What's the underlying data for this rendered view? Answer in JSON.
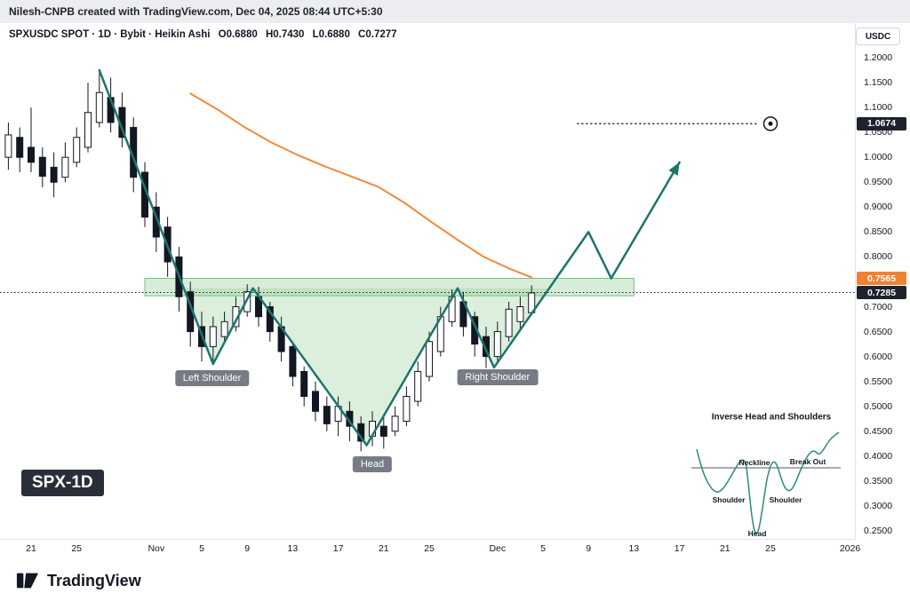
{
  "attribution": "Nilesh-CNPB created with TradingView.com, Dec 04, 2025 08:44 UTC+5:30",
  "header": {
    "symbol_info": "SPXUSDC SPOT · 1D · Bybit · Heikin Ashi",
    "open": "O0.6880",
    "high": "H0.7430",
    "low": "L0.6880",
    "close": "C0.7277"
  },
  "currency_button_label": "USDC",
  "watermark_label": "SPX-1D",
  "logo": {
    "brand": "TradingView"
  },
  "pattern_labels": [
    {
      "name": "left-shoulder-label",
      "label": "Left Shoulder",
      "day": 15.9,
      "price": 0.5565
    },
    {
      "name": "head-label",
      "label": "Head",
      "day": 30.0,
      "price": 0.3836
    },
    {
      "name": "right-shoulder-label",
      "label": "Right Shoulder",
      "day": 41.0,
      "price": 0.558
    }
  ],
  "inset": {
    "title": "Inverse Head and Shoulders",
    "labels": {
      "neckline": "Neckline",
      "breakout": "Break Out",
      "shoulder_left": "Shoulder",
      "shoulder_right": "Shoulder",
      "head": "Head"
    }
  },
  "price_axis": {
    "ticks": [
      "1.2000",
      "1.1500",
      "1.1000",
      "1.0500",
      "1.0000",
      "0.9500",
      "0.9000",
      "0.8500",
      "0.8000",
      "0.7000",
      "0.6500",
      "0.6000",
      "0.5500",
      "0.5000",
      "0.4500",
      "0.4000",
      "0.3500",
      "0.3000",
      "0.2500"
    ],
    "badges": [
      {
        "name": "target-price-badge",
        "value": "1.0674",
        "price": 1.0674,
        "bg": "#1e222d"
      },
      {
        "name": "ma-price-badge",
        "value": "0.7565",
        "price": 0.7565,
        "bg": "#ef8232"
      },
      {
        "name": "last-price-badge",
        "value": "0.7285",
        "price": 0.7285,
        "bg": "#1e222d"
      }
    ]
  },
  "time_axis": {
    "ticks": [
      {
        "label": "21",
        "day": 0
      },
      {
        "label": "25",
        "day": 4
      },
      {
        "label": "Nov",
        "day": 11
      },
      {
        "label": "5",
        "day": 15
      },
      {
        "label": "9",
        "day": 19
      },
      {
        "label": "13",
        "day": 23
      },
      {
        "label": "17",
        "day": 27
      },
      {
        "label": "21",
        "day": 31
      },
      {
        "label": "25",
        "day": 35
      },
      {
        "label": "Dec",
        "day": 41
      },
      {
        "label": "5",
        "day": 45
      },
      {
        "label": "9",
        "day": 49
      },
      {
        "label": "13",
        "day": 53
      },
      {
        "label": "17",
        "day": 57
      },
      {
        "label": "21",
        "day": 61
      },
      {
        "label": "25",
        "day": 65
      },
      {
        "label": "2026",
        "day": 72
      }
    ]
  },
  "chart_data": {
    "type": "candlestick",
    "symbol": "SPXUSDC",
    "exchange": "Bybit",
    "interval": "1D",
    "candle_style": "Heikin Ashi",
    "ylim": [
      0.25,
      1.2
    ],
    "x_unit": "days_from_oct_21",
    "grid": false,
    "colors": {
      "candle_up_fill": "#ffffff",
      "candle_down_fill": "#131722",
      "candle_border": "#131722",
      "ma_line": "#f08a3c",
      "zigzag": "#1c756c",
      "zone_fill": "rgba(76,175,80,0.22)",
      "zone_stroke": "rgba(102,187,106,0.9)",
      "pattern_fill": "rgba(129,199,132,0.28)",
      "dotted_line": "#131722"
    },
    "candles_format": [
      "day",
      "open",
      "high",
      "low",
      "close"
    ],
    "candles": [
      [
        -2,
        1.0,
        1.07,
        0.975,
        1.045
      ],
      [
        -1,
        1.04,
        1.06,
        0.97,
        1.0
      ],
      [
        0,
        1.02,
        1.1,
        0.97,
        0.99
      ],
      [
        1,
        1.0,
        1.02,
        0.94,
        0.962
      ],
      [
        2,
        0.98,
        1.01,
        0.92,
        0.95
      ],
      [
        3,
        0.96,
        1.03,
        0.95,
        1.0
      ],
      [
        4,
        0.99,
        1.06,
        0.98,
        1.04
      ],
      [
        5,
        1.02,
        1.15,
        1.01,
        1.09
      ],
      [
        6,
        1.07,
        1.175,
        1.06,
        1.13
      ],
      [
        7,
        1.12,
        1.16,
        1.05,
        1.07
      ],
      [
        8,
        1.1,
        1.13,
        1.02,
        1.04
      ],
      [
        9,
        1.06,
        1.08,
        0.93,
        0.96
      ],
      [
        10,
        0.97,
        0.99,
        0.86,
        0.88
      ],
      [
        11,
        0.9,
        0.93,
        0.81,
        0.84
      ],
      [
        12,
        0.86,
        0.88,
        0.76,
        0.79
      ],
      [
        13,
        0.8,
        0.82,
        0.69,
        0.72
      ],
      [
        14,
        0.73,
        0.75,
        0.62,
        0.65
      ],
      [
        15,
        0.66,
        0.69,
        0.59,
        0.62
      ],
      [
        16,
        0.62,
        0.68,
        0.585,
        0.66
      ],
      [
        17,
        0.64,
        0.69,
        0.63,
        0.67
      ],
      [
        18,
        0.66,
        0.72,
        0.65,
        0.7
      ],
      [
        19,
        0.69,
        0.745,
        0.68,
        0.73
      ],
      [
        20,
        0.72,
        0.74,
        0.66,
        0.68
      ],
      [
        21,
        0.7,
        0.71,
        0.63,
        0.65
      ],
      [
        22,
        0.66,
        0.68,
        0.59,
        0.61
      ],
      [
        23,
        0.62,
        0.63,
        0.54,
        0.56
      ],
      [
        24,
        0.57,
        0.58,
        0.5,
        0.52
      ],
      [
        25,
        0.53,
        0.55,
        0.47,
        0.49
      ],
      [
        26,
        0.5,
        0.52,
        0.45,
        0.465
      ],
      [
        27,
        0.47,
        0.52,
        0.44,
        0.5
      ],
      [
        28,
        0.49,
        0.51,
        0.43,
        0.46
      ],
      [
        29,
        0.465,
        0.48,
        0.41,
        0.43
      ],
      [
        30,
        0.44,
        0.49,
        0.42,
        0.47
      ],
      [
        31,
        0.46,
        0.48,
        0.415,
        0.44
      ],
      [
        32,
        0.45,
        0.5,
        0.44,
        0.48
      ],
      [
        33,
        0.47,
        0.54,
        0.46,
        0.52
      ],
      [
        34,
        0.51,
        0.59,
        0.5,
        0.57
      ],
      [
        35,
        0.56,
        0.65,
        0.55,
        0.63
      ],
      [
        36,
        0.61,
        0.7,
        0.6,
        0.68
      ],
      [
        37,
        0.67,
        0.735,
        0.66,
        0.72
      ],
      [
        38,
        0.71,
        0.73,
        0.64,
        0.66
      ],
      [
        39,
        0.68,
        0.69,
        0.6,
        0.625
      ],
      [
        40,
        0.64,
        0.66,
        0.577,
        0.6
      ],
      [
        41,
        0.6,
        0.67,
        0.585,
        0.65
      ],
      [
        42,
        0.64,
        0.71,
        0.63,
        0.695
      ],
      [
        43,
        0.67,
        0.72,
        0.65,
        0.7
      ],
      [
        44,
        0.688,
        0.743,
        0.688,
        0.7277
      ]
    ],
    "ma_line": {
      "color": "#f08a3c",
      "points": [
        [
          14,
          1.128
        ],
        [
          16.4,
          1.096
        ],
        [
          18.8,
          1.06
        ],
        [
          21.1,
          1.03
        ],
        [
          23.4,
          1.005
        ],
        [
          25.8,
          0.982
        ],
        [
          28.1,
          0.962
        ],
        [
          30.5,
          0.941
        ],
        [
          32.8,
          0.909
        ],
        [
          35.2,
          0.87
        ],
        [
          37.5,
          0.834
        ],
        [
          39.8,
          0.8
        ],
        [
          42.2,
          0.775
        ],
        [
          44,
          0.759
        ]
      ]
    },
    "zigzag": {
      "color": "#1c756c",
      "points": [
        [
          6,
          1.175
        ],
        [
          16,
          0.585
        ],
        [
          19.5,
          0.737
        ],
        [
          29.5,
          0.422
        ],
        [
          37.5,
          0.737
        ],
        [
          40.7,
          0.578
        ],
        [
          49,
          0.85
        ],
        [
          51,
          0.757
        ],
        [
          57,
          0.99
        ]
      ],
      "arrow_end": true
    },
    "pattern_fill_points": [
      [
        13.4,
        0.737
      ],
      [
        16,
        0.585
      ],
      [
        19.5,
        0.737
      ],
      [
        29.5,
        0.422
      ],
      [
        37.5,
        0.737
      ],
      [
        40.7,
        0.578
      ],
      [
        45.6,
        0.737
      ]
    ],
    "neckline_zone": {
      "from_day": 10,
      "to_day": 53,
      "price_top": 0.757,
      "price_bottom": 0.722
    },
    "dotted_price_line": {
      "price": 0.7285
    },
    "target_line": {
      "price": 1.0674,
      "from_day": 48,
      "to_day": 63.8,
      "marker_day": 65
    }
  }
}
